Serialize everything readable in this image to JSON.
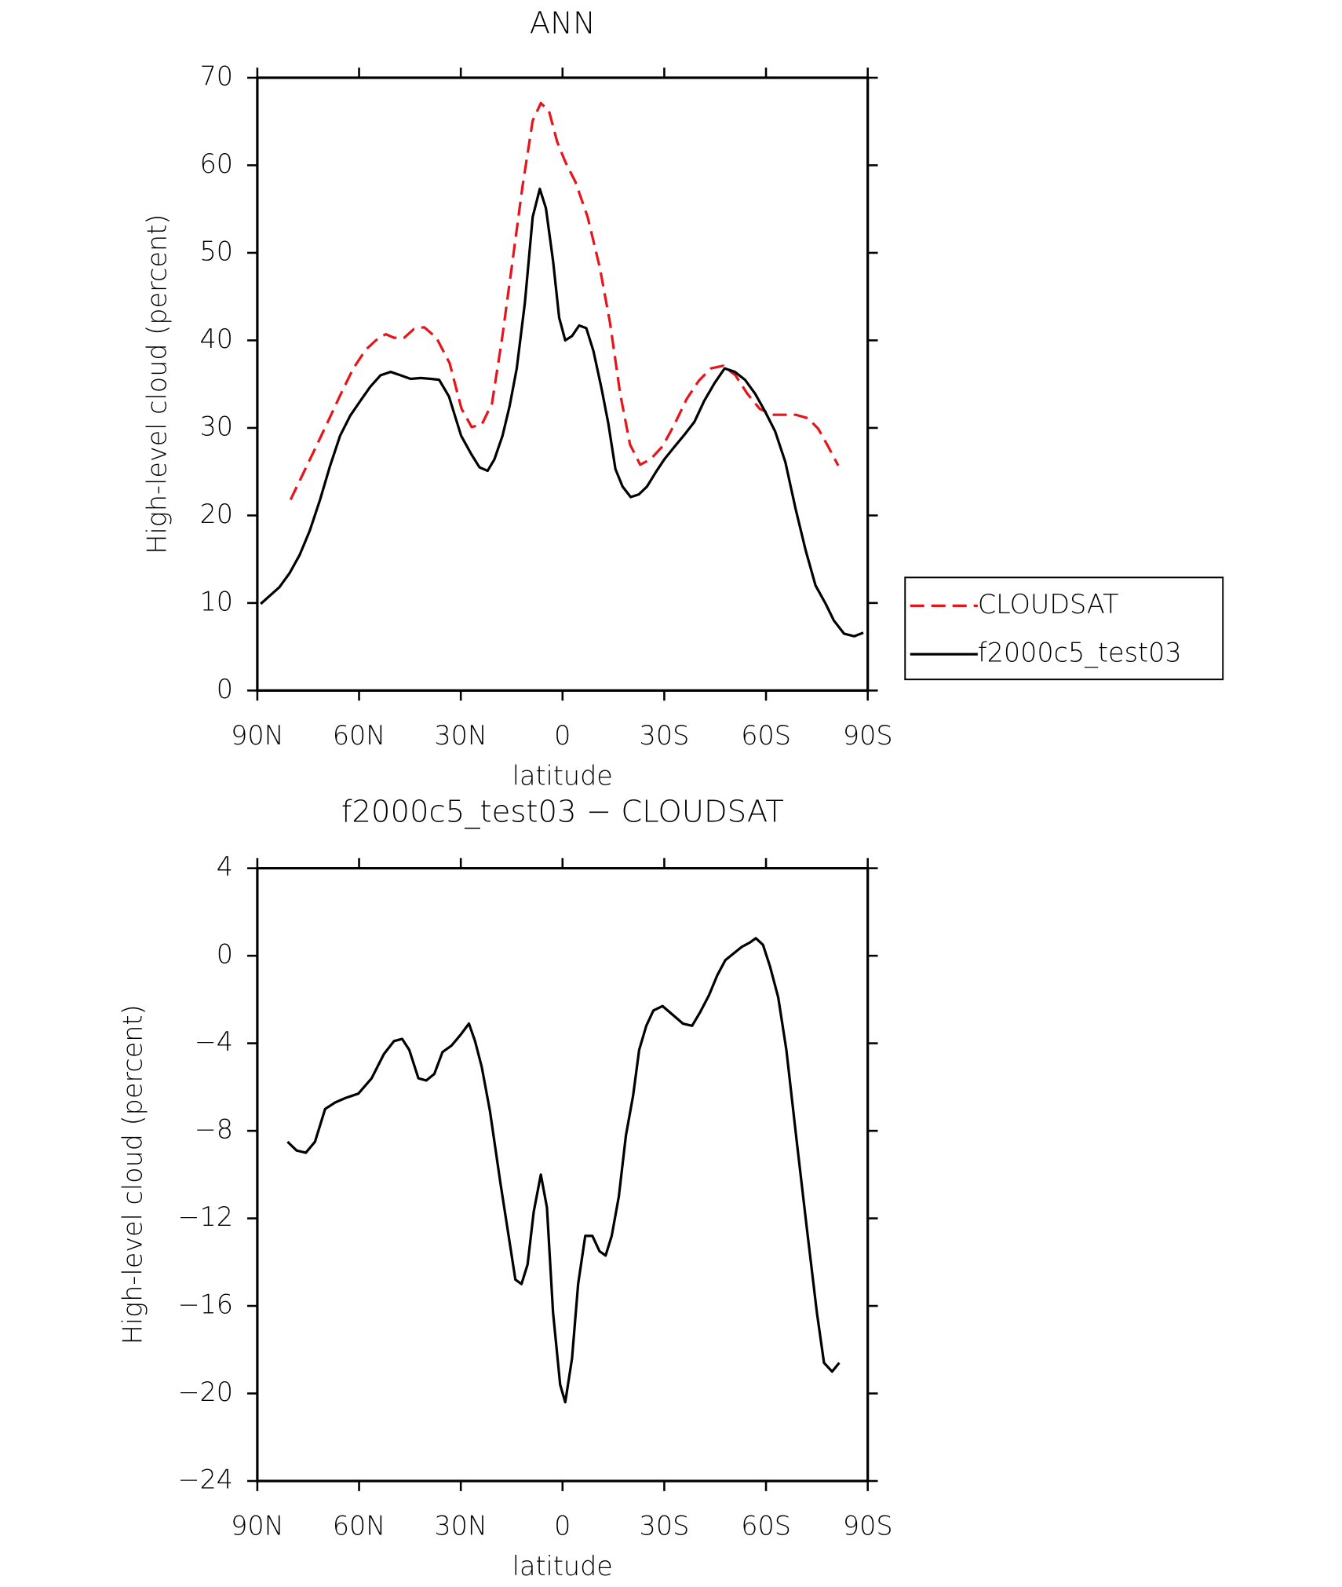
{
  "chart_data": [
    {
      "type": "line",
      "title": "ANN",
      "xlabel": "latitude",
      "ylabel": "High-level cloud (percent)",
      "xlim": [
        90,
        -90
      ],
      "ylim": [
        0,
        70
      ],
      "xticks": [
        {
          "value": 90,
          "label": "90N"
        },
        {
          "value": 60,
          "label": "60N"
        },
        {
          "value": 30,
          "label": "30N"
        },
        0,
        {
          "value": -30,
          "label": "30S"
        },
        {
          "value": -60,
          "label": "60S"
        },
        {
          "value": -90,
          "label": "90S"
        }
      ],
      "yticks": [
        0,
        10,
        20,
        30,
        40,
        50,
        60,
        70
      ],
      "legend": "right",
      "series": [
        {
          "name": "CLOUDSAT",
          "color": "#e8141a",
          "dash": "dashed",
          "x": [
            80.2,
            76.6,
            73.0,
            69.2,
            65.6,
            61.7,
            58.1,
            54.2,
            52.1,
            49.7,
            46.7,
            43.8,
            40.8,
            37.2,
            33.3,
            29.8,
            26.8,
            23.8,
            20.8,
            17.8,
            14.8,
            11.8,
            8.8,
            6.4,
            4.0,
            1.6,
            -0.8,
            -3.8,
            -7.4,
            -11.0,
            -14.0,
            -17.0,
            -19.9,
            -22.9,
            -25.9,
            -29.5,
            -33.0,
            -36.6,
            -40.2,
            -43.8,
            -47.4,
            -51.0,
            -54.5,
            -58.1,
            -61.7,
            -65.2,
            -68.8,
            -72.4,
            -75.4,
            -78.3,
            -81.3
          ],
          "values": [
            21.8,
            24.7,
            27.6,
            30.7,
            33.7,
            36.8,
            38.9,
            40.3,
            40.7,
            40.3,
            40.3,
            41.3,
            41.5,
            40.3,
            37.4,
            32.2,
            30.1,
            30.4,
            32.8,
            40.3,
            48.9,
            57.6,
            65.1,
            67.1,
            66.2,
            62.7,
            60.4,
            58.1,
            54.1,
            48.3,
            42.0,
            33.9,
            28.1,
            25.8,
            26.4,
            27.9,
            30.4,
            33.3,
            35.4,
            36.8,
            37.1,
            36.0,
            33.9,
            32.2,
            31.5,
            31.5,
            31.5,
            31.1,
            29.9,
            27.9,
            25.7
          ]
        },
        {
          "name": "f2000c5_test03",
          "color": "#000000",
          "dash": "solid",
          "x": [
            89.0,
            86.4,
            83.5,
            80.5,
            77.5,
            74.5,
            71.5,
            68.6,
            65.6,
            62.6,
            59.6,
            56.7,
            53.7,
            50.7,
            47.7,
            44.8,
            41.8,
            38.8,
            36.4,
            33.5,
            29.9,
            26.9,
            24.5,
            22.1,
            20.1,
            17.7,
            15.6,
            13.5,
            11.1,
            8.8,
            6.7,
            4.9,
            2.8,
            1.0,
            -0.8,
            -2.8,
            -4.9,
            -7.0,
            -9.1,
            -11.5,
            -13.5,
            -15.6,
            -17.7,
            -20.1,
            -22.5,
            -24.9,
            -27.6,
            -30.0,
            -32.9,
            -35.9,
            -38.9,
            -41.8,
            -44.8,
            -47.8,
            -50.8,
            -53.8,
            -56.8,
            -59.7,
            -62.7,
            -65.7,
            -68.7,
            -71.7,
            -74.6,
            -77.6,
            -80.0,
            -83.0,
            -86.0,
            -88.7
          ],
          "values": [
            9.9,
            10.8,
            11.8,
            13.4,
            15.5,
            18.3,
            21.8,
            25.6,
            29.1,
            31.4,
            33.1,
            34.7,
            36.0,
            36.4,
            36.0,
            35.6,
            35.7,
            35.6,
            35.5,
            33.6,
            29.1,
            27.0,
            25.5,
            25.1,
            26.4,
            29.1,
            32.5,
            36.8,
            44.3,
            54.1,
            57.3,
            55.1,
            49.1,
            42.6,
            40.0,
            40.5,
            41.7,
            41.4,
            38.8,
            34.5,
            30.5,
            25.3,
            23.3,
            22.1,
            22.4,
            23.3,
            25.0,
            26.4,
            27.8,
            29.2,
            30.7,
            33.1,
            35.1,
            36.8,
            36.4,
            35.5,
            33.9,
            31.9,
            29.6,
            26.1,
            20.8,
            16.0,
            12.0,
            9.9,
            8.0,
            6.5,
            6.2,
            6.6
          ]
        }
      ]
    },
    {
      "type": "line",
      "title": "f2000c5_test03 − CLOUDSAT",
      "xlabel": "latitude",
      "ylabel": "High-level cloud (percent)",
      "xlim": [
        90,
        -90
      ],
      "ylim": [
        -24,
        4
      ],
      "xticks": [
        {
          "value": 90,
          "label": "90N"
        },
        {
          "value": 60,
          "label": "60N"
        },
        {
          "value": 30,
          "label": "30N"
        },
        0,
        {
          "value": -30,
          "label": "30S"
        },
        {
          "value": -60,
          "label": "60S"
        },
        {
          "value": -90,
          "label": "90S"
        }
      ],
      "yticks": [
        4,
        0,
        {
          "value": -4,
          "label": "−4"
        },
        {
          "value": -8,
          "label": "−8"
        },
        {
          "value": -12,
          "label": "−12"
        },
        {
          "value": -16,
          "label": "−16"
        },
        {
          "value": -20,
          "label": "−20"
        },
        {
          "value": -24,
          "label": "−24"
        }
      ],
      "color": "#000000",
      "x": [
        81.1,
        78.4,
        75.7,
        73.0,
        70.0,
        67.0,
        64.0,
        60.2,
        56.3,
        52.7,
        49.7,
        47.3,
        45.2,
        42.5,
        40.2,
        37.8,
        35.4,
        32.7,
        30.0,
        27.6,
        25.8,
        23.8,
        21.4,
        18.4,
        15.4,
        13.9,
        12.1,
        10.3,
        8.5,
        6.4,
        4.6,
        2.8,
        0.7,
        -0.8,
        -2.8,
        -4.6,
        -6.7,
        -8.8,
        -10.9,
        -12.7,
        -14.5,
        -16.6,
        -18.7,
        -20.8,
        -22.6,
        -24.7,
        -26.8,
        -29.5,
        -32.5,
        -35.5,
        -38.2,
        -40.5,
        -43.2,
        -45.6,
        -48.0,
        -50.4,
        -52.8,
        -55.2,
        -57.0,
        -59.1,
        -61.2,
        -63.6,
        -66.0,
        -69.0,
        -72.0,
        -75.0,
        -77.1,
        -79.5,
        -81.6
      ],
      "values": [
        -8.5,
        -8.9,
        -9.0,
        -8.5,
        -7.0,
        -6.7,
        -6.5,
        -6.3,
        -5.6,
        -4.5,
        -3.9,
        -3.8,
        -4.3,
        -5.6,
        -5.7,
        -5.4,
        -4.4,
        -4.1,
        -3.6,
        -3.1,
        -3.9,
        -5.1,
        -7.1,
        -10.3,
        -13.3,
        -14.8,
        -15.0,
        -14.1,
        -11.7,
        -10.0,
        -11.5,
        -16.3,
        -19.6,
        -20.4,
        -18.4,
        -15.0,
        -12.8,
        -12.8,
        -13.5,
        -13.7,
        -12.8,
        -11.0,
        -8.2,
        -6.4,
        -4.3,
        -3.2,
        -2.5,
        -2.3,
        -2.7,
        -3.1,
        -3.2,
        -2.6,
        -1.8,
        -0.9,
        -0.2,
        0.1,
        0.4,
        0.6,
        0.8,
        0.5,
        -0.5,
        -1.9,
        -4.3,
        -8.4,
        -12.4,
        -16.3,
        -18.6,
        -19.0,
        -18.6
      ]
    }
  ]
}
